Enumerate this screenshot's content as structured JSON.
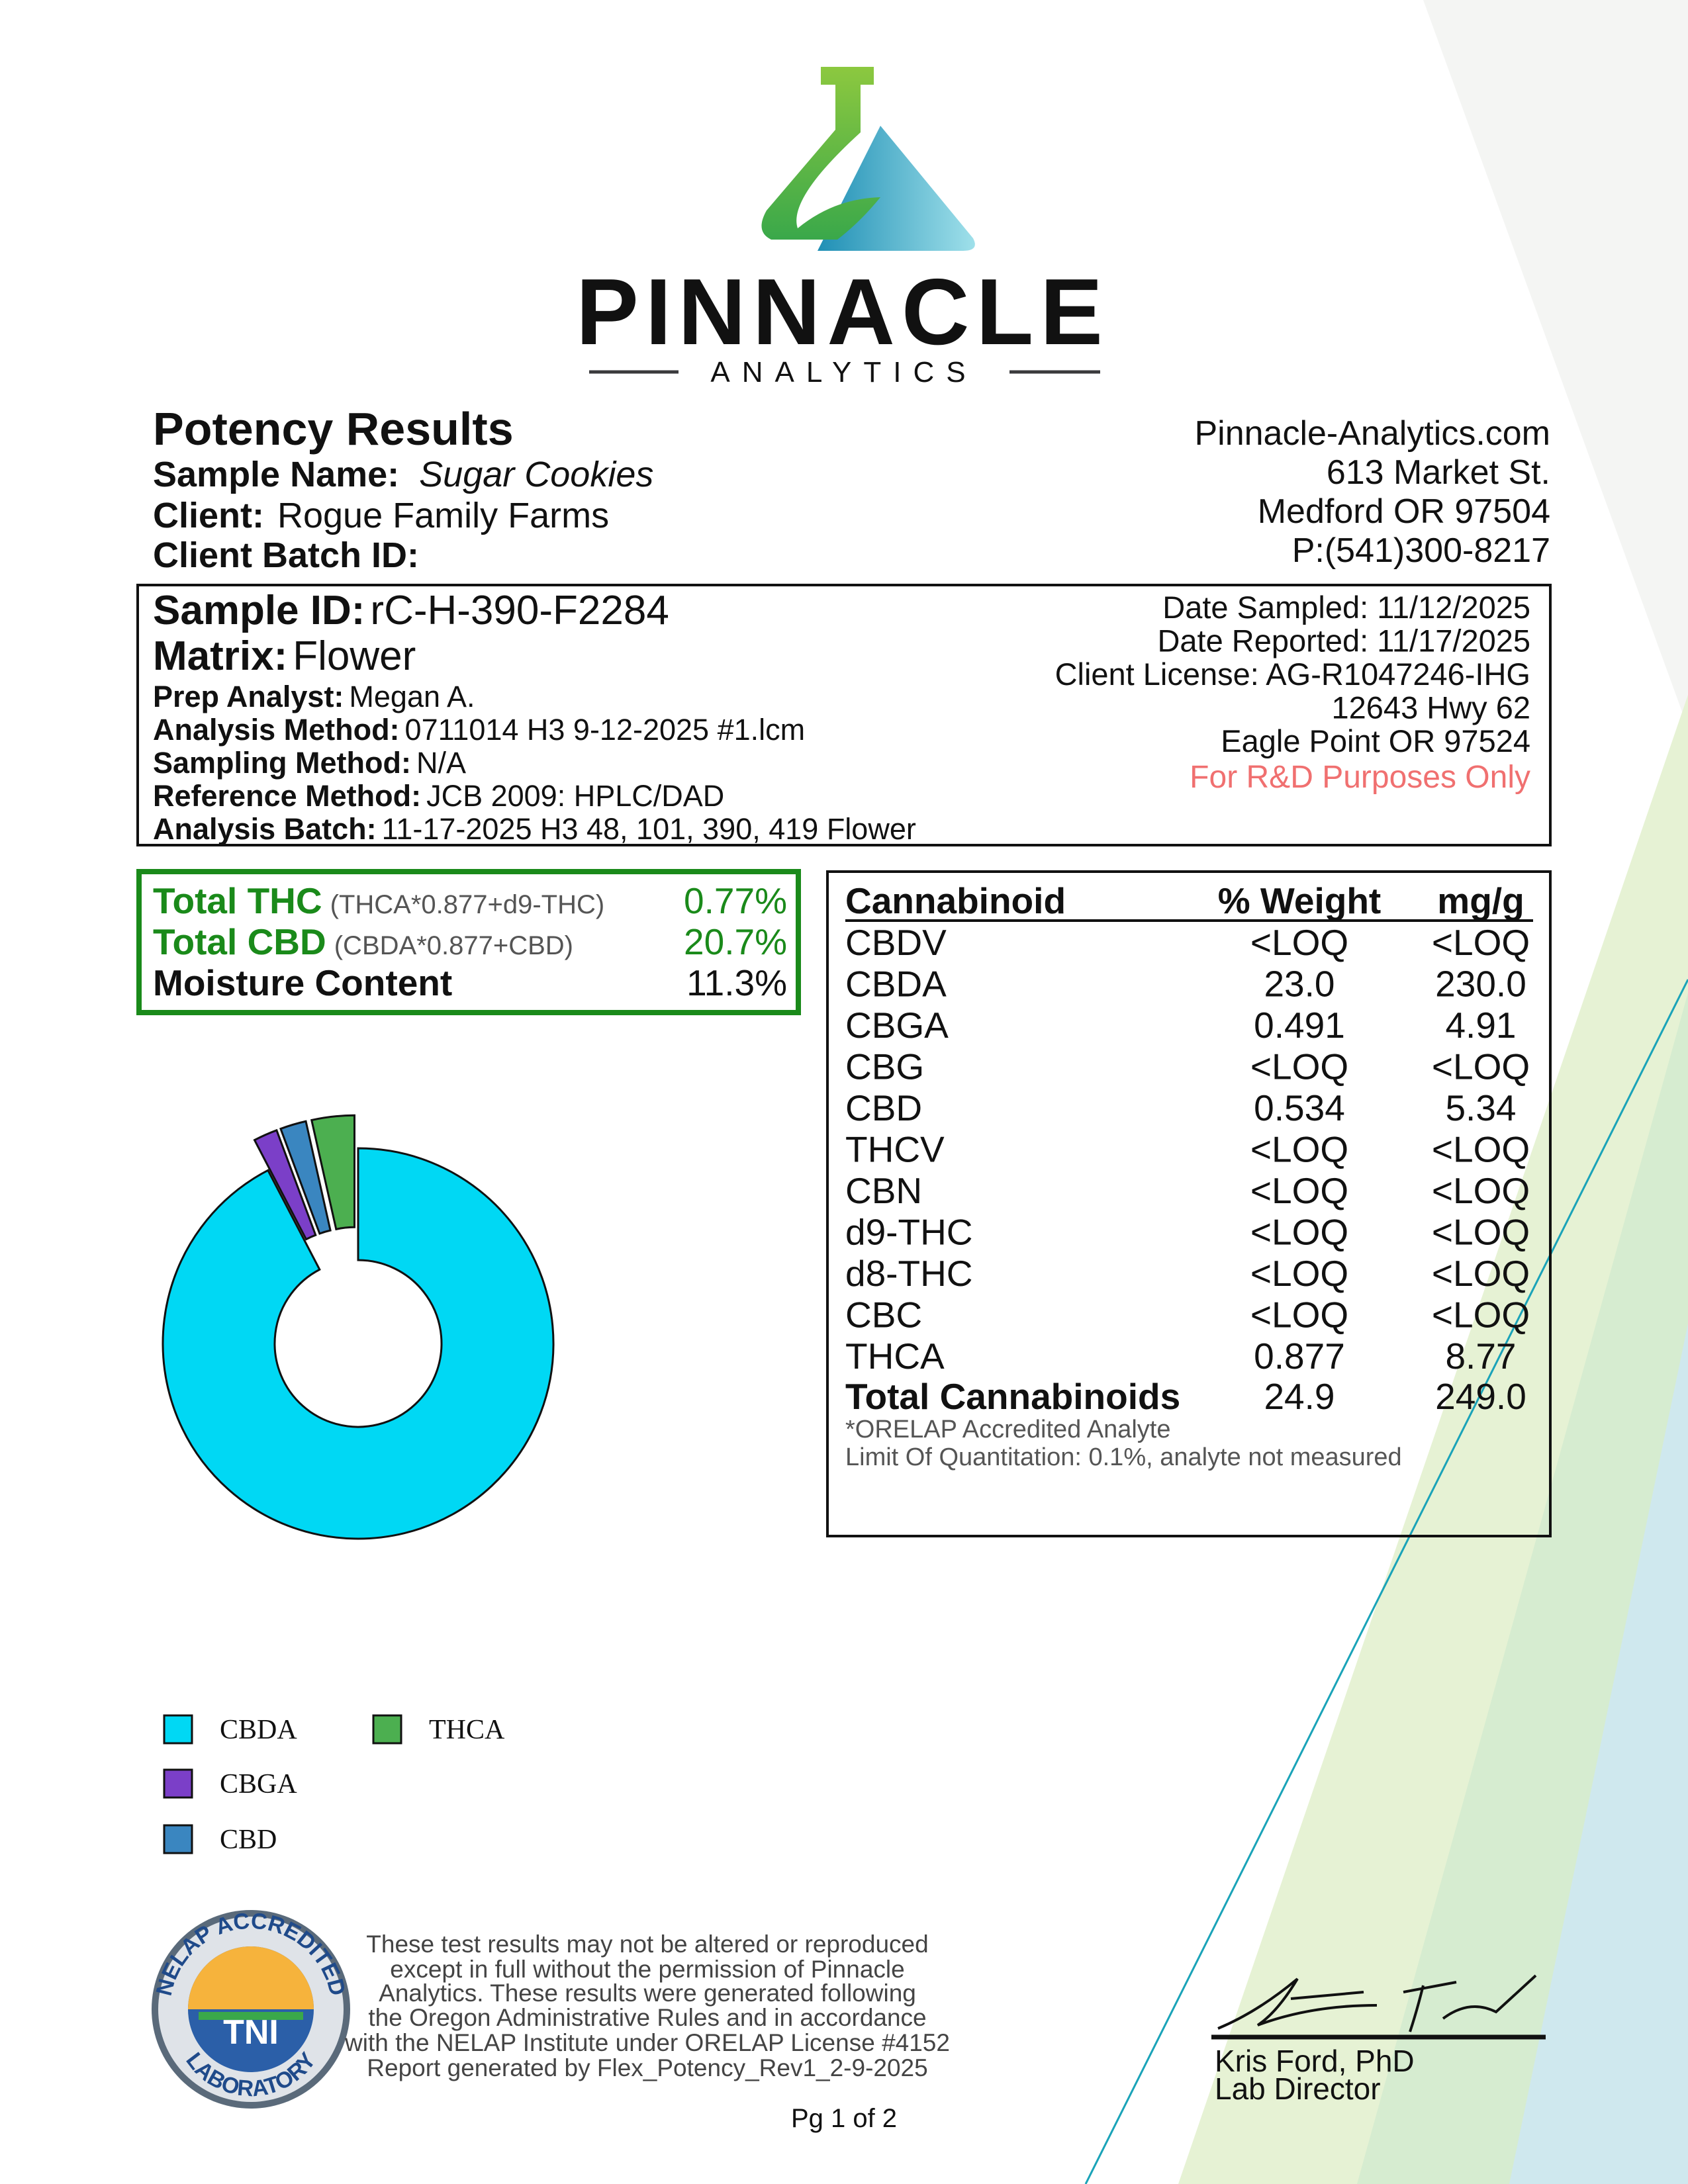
{
  "logo": {
    "name": "PINNACLE",
    "tagline": "ANALYTICS"
  },
  "header": {
    "title": "Potency Results",
    "sample_name_label": "Sample Name:",
    "sample_name": "Sugar Cookies",
    "client_label": "Client:",
    "client": "Rogue Family Farms",
    "batch_label": "Client Batch ID:"
  },
  "lab": {
    "lines": [
      "Pinnacle-Analytics.com",
      "613 Market St.",
      "Medford OR 97504",
      "P:(541)300-8217"
    ]
  },
  "sample": {
    "fields": [
      {
        "label": "Sample ID:",
        "value": "rC-H-390-F2284"
      },
      {
        "label": "Matrix:",
        "value": "Flower"
      },
      {
        "label": "Prep Analyst:",
        "value": "Megan A."
      },
      {
        "label": "Analysis Method:",
        "value": "0711014 H3 9-12-2025 #1.lcm"
      },
      {
        "label": "Sampling Method:",
        "value": "N/A"
      },
      {
        "label": "Reference Method:",
        "value": "JCB 2009: HPLC/DAD"
      },
      {
        "label": "Analysis Batch:",
        "value": "11-17-2025 H3 48, 101, 390, 419 Flower"
      }
    ],
    "info": [
      "Date Sampled:  11/12/2025",
      "Date Reported: 11/17/2025",
      "Client License: AG-R1047246-IHG",
      "12643 Hwy 62",
      "Eagle Point OR 97524"
    ],
    "notice": "For R&D Purposes Only"
  },
  "totals": [
    {
      "label": "Total THC",
      "formula": "(THCA*0.877+d9-THC)",
      "value": "0.77%"
    },
    {
      "label": "Total CBD",
      "formula": "(CBDA*0.877+CBD)",
      "value": "20.7%"
    },
    {
      "label": "Moisture Content",
      "formula": "",
      "value": "11.3%"
    }
  ],
  "table": {
    "header": [
      "Cannabinoid",
      "% Weight",
      "mg/g"
    ],
    "rows": [
      [
        "CBDV",
        "<LOQ",
        "<LOQ"
      ],
      [
        "CBDA",
        "23.0",
        "230.0"
      ],
      [
        "CBGA",
        "0.491",
        "4.91"
      ],
      [
        "CBG",
        "<LOQ",
        "<LOQ"
      ],
      [
        "CBD",
        "0.534",
        "5.34"
      ],
      [
        "THCV",
        "<LOQ",
        "<LOQ"
      ],
      [
        "CBN",
        "<LOQ",
        "<LOQ"
      ],
      [
        "d9-THC",
        "<LOQ",
        "<LOQ"
      ],
      [
        "d8-THC",
        "<LOQ",
        "<LOQ"
      ],
      [
        "CBC",
        "<LOQ",
        "<LOQ"
      ],
      [
        "THCA",
        "0.877",
        "8.77"
      ]
    ],
    "total": [
      "Total Cannabinoids",
      "24.9",
      "249.0"
    ],
    "notes": [
      "*ORELAP Accredited Analyte",
      "Limit Of Quantitation: 0.1%, analyte not measured"
    ]
  },
  "chart_data": {
    "type": "pie",
    "donut": true,
    "categories": [
      "CBDA",
      "CBGA",
      "CBD",
      "THCA"
    ],
    "values": [
      23.0,
      0.491,
      0.534,
      0.877
    ],
    "colors": [
      "#00d8f4",
      "#7b3fc8",
      "#3a86c0",
      "#4caf50"
    ],
    "exploded": [
      false,
      true,
      true,
      true
    ]
  },
  "seal": {
    "top": "NELAP ACCREDITED",
    "center": "TNI",
    "bottom": "LABORATORY"
  },
  "disclaimer": [
    "These test results may not be altered or reproduced",
    "except in full without the permission of Pinnacle",
    "Analytics. These results were generated following",
    "the Oregon Administrative Rules and in accordance",
    "with the NELAP Institute under ORELAP License #4152",
    "Report generated by Flex_Potency_Rev1_2-9-2025"
  ],
  "page": "Pg 1 of 2",
  "signature": {
    "name": "Kris Ford, PhD",
    "role": "Lab Director"
  }
}
